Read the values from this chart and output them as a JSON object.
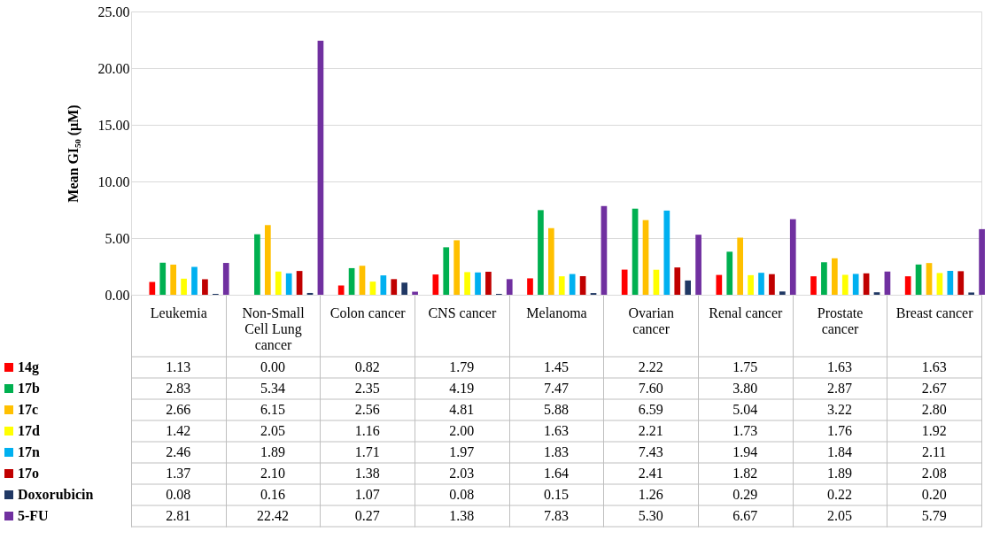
{
  "chart_data": {
    "type": "bar",
    "ylabel": "Mean GI₅₀ (µM)",
    "categories": [
      "Leukemia",
      "Non-Small Cell Lung cancer",
      "Colon cancer",
      "CNS cancer",
      "Melanoma",
      "Ovarian cancer",
      "Renal cancer",
      "Prostate cancer",
      "Breast cancer"
    ],
    "series": [
      {
        "name": "14g",
        "color": "#ff0000",
        "values": [
          1.13,
          0.0,
          0.82,
          1.79,
          1.45,
          2.22,
          1.75,
          1.63,
          1.63
        ],
        "value_labels": [
          "1.13",
          "0.00",
          "0.82",
          "1.79",
          "1.45",
          "2.22",
          "1.75",
          "1.63",
          "1.63"
        ]
      },
      {
        "name": "17b",
        "color": "#00b050",
        "values": [
          2.83,
          5.34,
          2.35,
          4.19,
          7.47,
          7.6,
          3.8,
          2.87,
          2.67
        ],
        "value_labels": [
          "2.83",
          "5.34",
          "2.35",
          "4.19",
          "7.47",
          "7.60",
          "3.80",
          "2.87",
          "2.67"
        ]
      },
      {
        "name": "17c",
        "color": "#ffc000",
        "values": [
          2.66,
          6.15,
          2.56,
          4.81,
          5.88,
          6.59,
          5.04,
          3.22,
          2.8
        ],
        "value_labels": [
          "2.66",
          "6.15",
          "2.56",
          "4.81",
          "5.88",
          "6.59",
          "5.04",
          "3.22",
          "2.80"
        ]
      },
      {
        "name": "17d",
        "color": "#ffff00",
        "values": [
          1.42,
          2.05,
          1.16,
          2.0,
          1.63,
          2.21,
          1.73,
          1.76,
          1.92
        ],
        "value_labels": [
          "1.42",
          "2.05",
          "1.16",
          "2.00",
          "1.63",
          "2.21",
          "1.73",
          "1.76",
          "1.92"
        ]
      },
      {
        "name": "17n",
        "color": "#00b0f0",
        "values": [
          2.46,
          1.89,
          1.71,
          1.97,
          1.83,
          7.43,
          1.94,
          1.84,
          2.11
        ],
        "value_labels": [
          "2.46",
          "1.89",
          "1.71",
          "1.97",
          "1.83",
          "7.43",
          "1.94",
          "1.84",
          "2.11"
        ]
      },
      {
        "name": "17o",
        "color": "#c00000",
        "values": [
          1.37,
          2.1,
          1.38,
          2.03,
          1.64,
          2.41,
          1.82,
          1.89,
          2.08
        ],
        "value_labels": [
          "1.37",
          "2.10",
          "1.38",
          "2.03",
          "1.64",
          "2.41",
          "1.82",
          "1.89",
          "2.08"
        ]
      },
      {
        "name": "Doxorubicin",
        "color": "#203864",
        "values": [
          0.08,
          0.16,
          1.07,
          0.08,
          0.15,
          1.26,
          0.29,
          0.22,
          0.2
        ],
        "value_labels": [
          "0.08",
          "0.16",
          "1.07",
          "0.08",
          "0.15",
          "1.26",
          "0.29",
          "0.22",
          "0.20"
        ]
      },
      {
        "name": "5-FU",
        "color": "#7030a0",
        "values": [
          2.81,
          22.42,
          0.27,
          1.38,
          7.83,
          5.3,
          6.67,
          2.05,
          5.79
        ],
        "value_labels": [
          "2.81",
          "22.42",
          "0.27",
          "1.38",
          "7.83",
          "5.30",
          "6.67",
          "2.05",
          "5.79"
        ]
      }
    ],
    "ylim": [
      0,
      25
    ],
    "yticks": [
      {
        "value": 0,
        "label": "0.00"
      },
      {
        "value": 5,
        "label": "5.00"
      },
      {
        "value": 10,
        "label": "10.00"
      },
      {
        "value": 15,
        "label": "15.00"
      },
      {
        "value": 20,
        "label": "20.00"
      },
      {
        "value": 25,
        "label": "25.00"
      }
    ],
    "grid": "y",
    "legend": "bottom left"
  }
}
